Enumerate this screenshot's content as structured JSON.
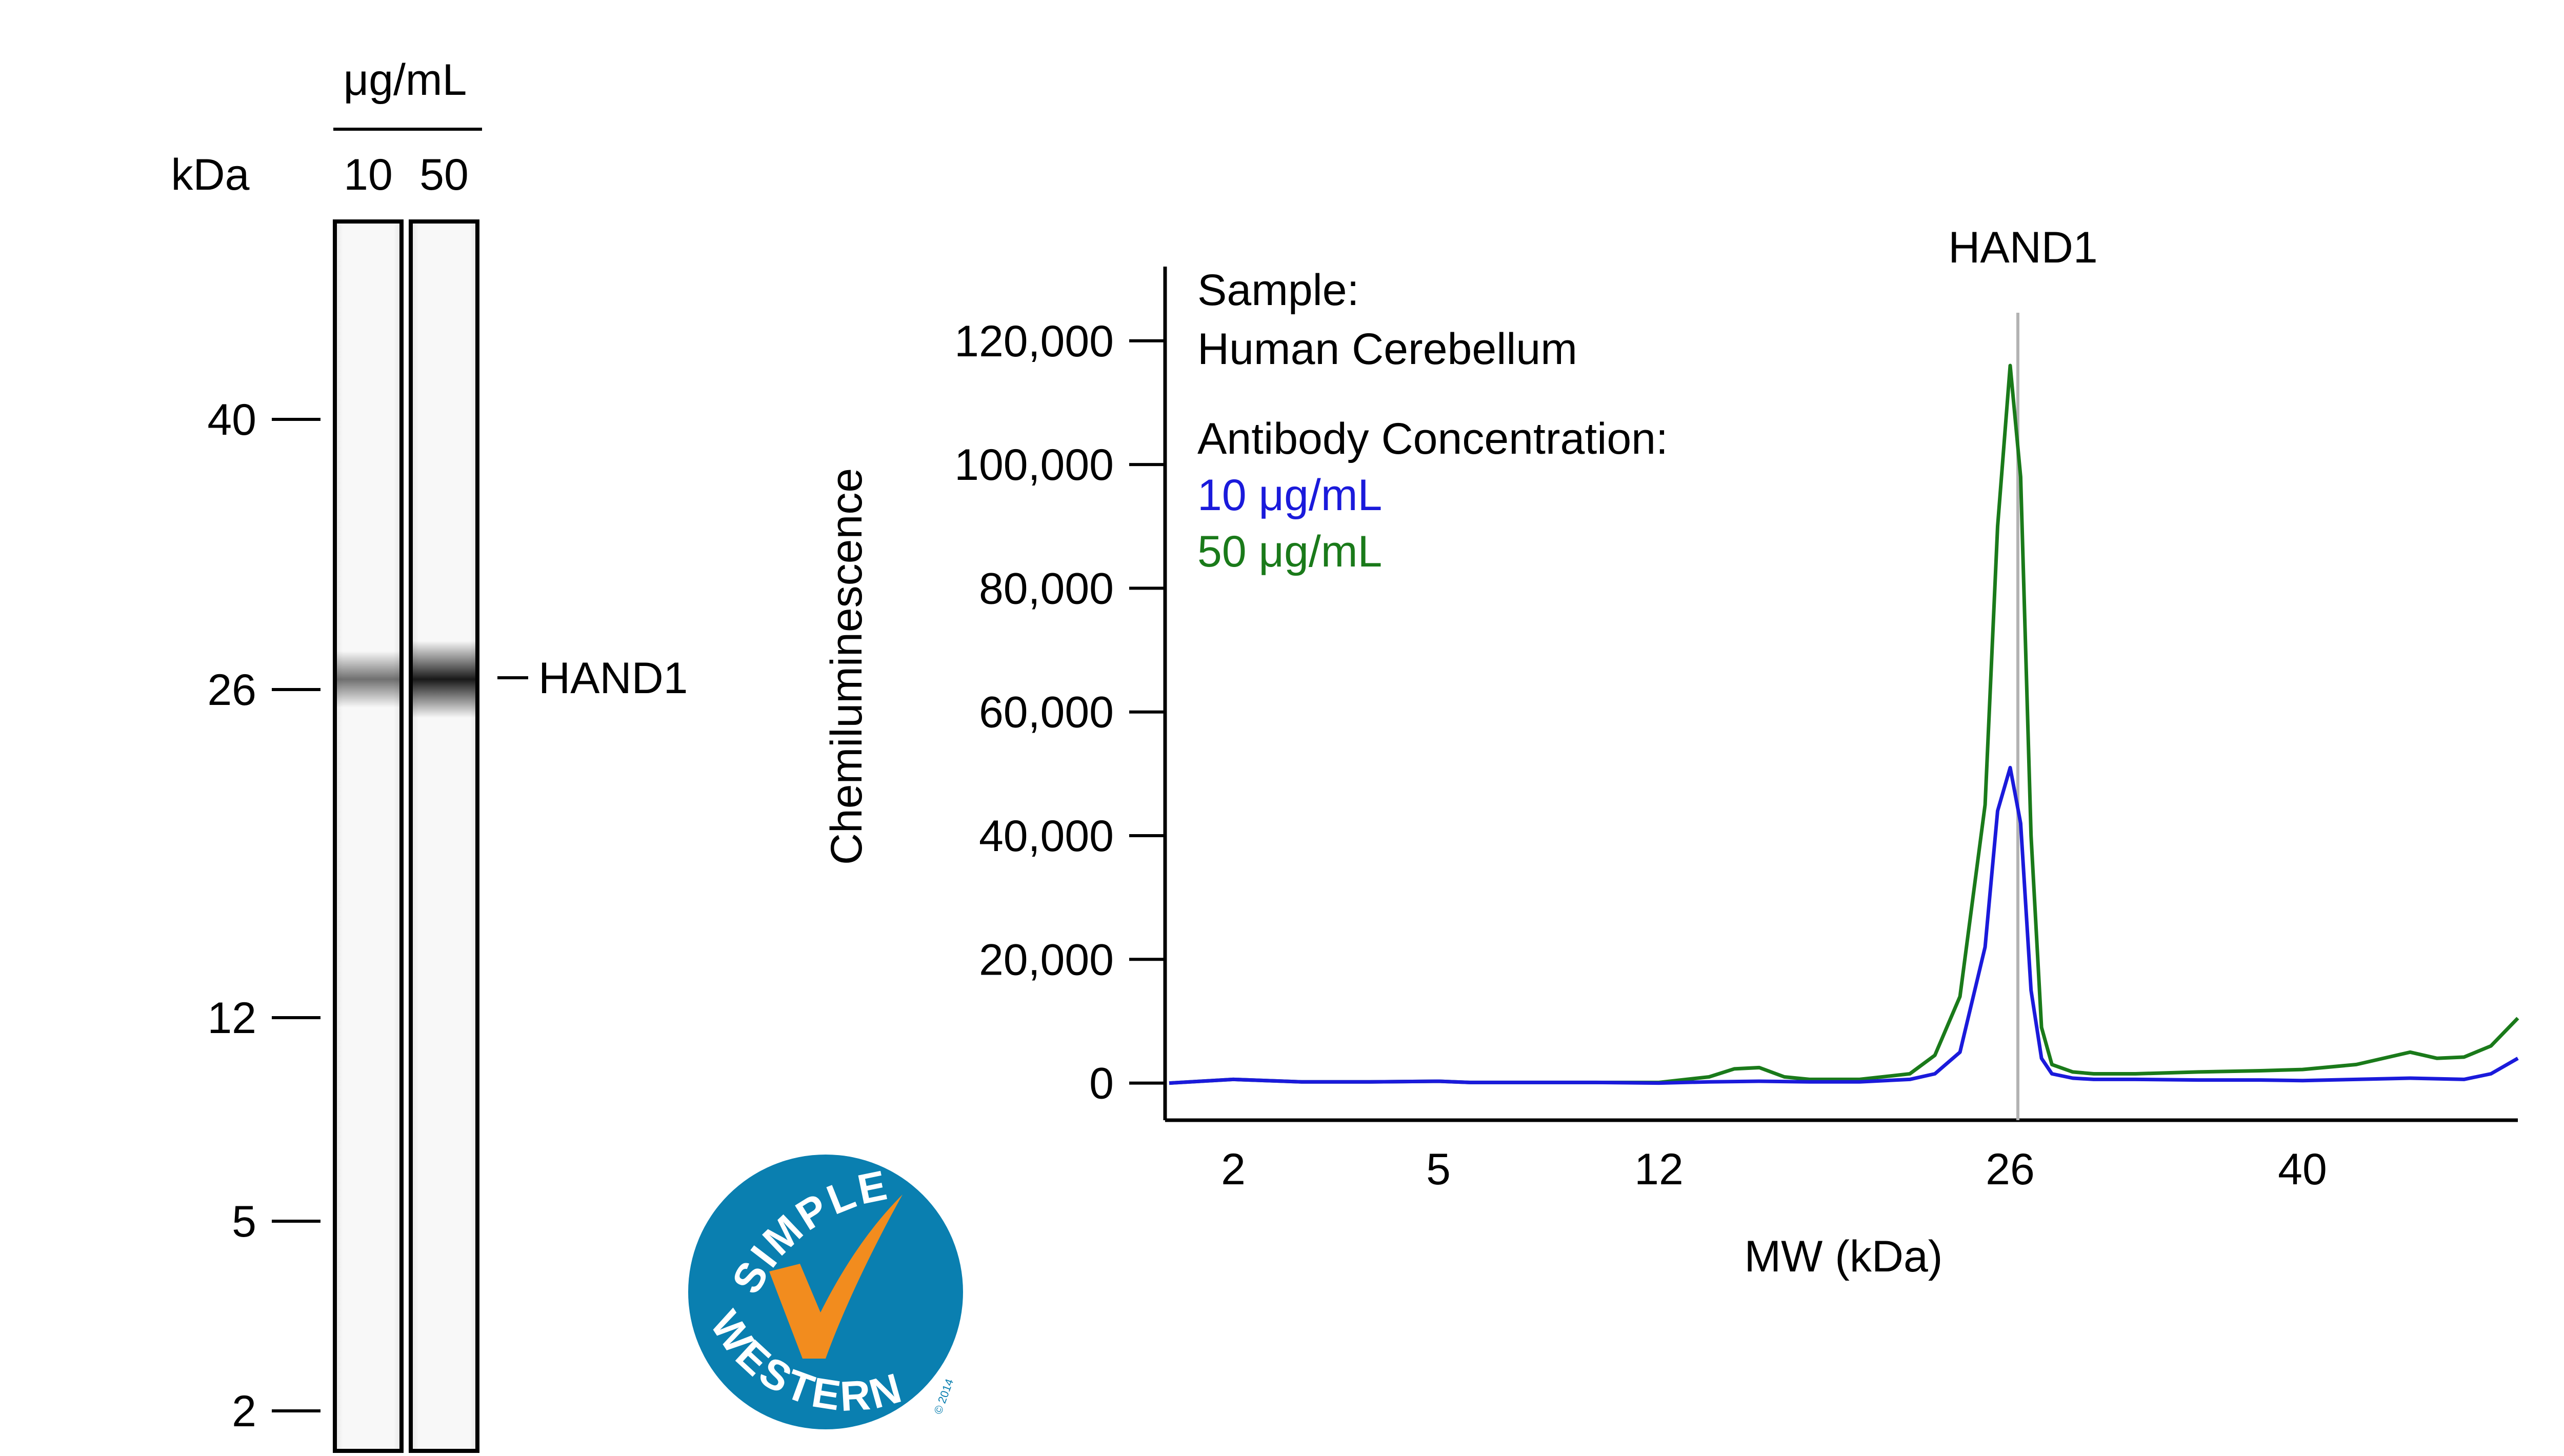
{
  "gel": {
    "unit_label": "μg/mL",
    "kda_label": "kDa",
    "lanes": [
      {
        "label": "10",
        "band_intensity": 0.55
      },
      {
        "label": "50",
        "band_intensity": 0.9
      }
    ],
    "markers": [
      {
        "label": "40",
        "kda": 40
      },
      {
        "label": "26",
        "kda": 26
      },
      {
        "label": "12",
        "kda": 12
      },
      {
        "label": "5",
        "kda": 5
      },
      {
        "label": "2",
        "kda": 2
      }
    ],
    "band_label": "HAND1",
    "band_kda": 26
  },
  "logo": {
    "top_text": "SIMPLE",
    "bottom_text": "WESTERN",
    "copyright": "© 2014",
    "colors": {
      "circle": "#0a7fb0",
      "check": "#f28c1e"
    }
  },
  "chart_data": {
    "type": "line",
    "title": "",
    "peak_label": "HAND1",
    "peak_x": 26,
    "xlabel": "MW (kDa)",
    "ylabel": "Chemiluminescence",
    "x_ticks": [
      2,
      5,
      12,
      26,
      40
    ],
    "y_ticks": [
      0,
      20000,
      40000,
      60000,
      80000,
      100000,
      120000
    ],
    "y_tick_labels": [
      "0",
      "20,000",
      "40,000",
      "60,000",
      "80,000",
      "100,000",
      "120,000"
    ],
    "ylim": [
      -6000,
      132000
    ],
    "xlim": [
      1,
      48
    ],
    "legend": {
      "sample_heading": "Sample:",
      "sample_name": "Human Cerebellum",
      "conc_heading": "Antibody Concentration:"
    },
    "series": [
      {
        "name": "10 μg/mL",
        "color": "#1a1adb",
        "x": [
          1,
          2,
          3,
          4,
          5,
          6,
          8,
          10,
          12,
          14,
          16,
          18,
          20,
          22,
          23,
          24,
          25,
          25.5,
          26,
          26.5,
          27,
          27.5,
          28,
          29,
          30,
          32,
          35,
          38,
          40,
          42,
          44,
          46,
          47,
          48
        ],
        "y": [
          0,
          600,
          200,
          200,
          300,
          100,
          100,
          100,
          0,
          200,
          300,
          200,
          200,
          600,
          1500,
          5000,
          22000,
          44000,
          51000,
          42000,
          15000,
          4000,
          1500,
          800,
          600,
          600,
          500,
          500,
          400,
          600,
          800,
          600,
          1500,
          4000
        ]
      },
      {
        "name": "50 μg/mL",
        "color": "#1a7a1a",
        "x": [
          1,
          2,
          3,
          4,
          5,
          6,
          8,
          10,
          12,
          14,
          15,
          16,
          17,
          18,
          20,
          22,
          23,
          24,
          25,
          25.5,
          26,
          26.5,
          27,
          27.5,
          28,
          29,
          30,
          32,
          35,
          38,
          40,
          42,
          44,
          45,
          46,
          47,
          48
        ],
        "y": [
          0,
          600,
          200,
          200,
          300,
          100,
          100,
          100,
          100,
          1000,
          2300,
          2500,
          1000,
          600,
          600,
          1500,
          4500,
          14000,
          45000,
          90000,
          116000,
          98000,
          40000,
          9000,
          3000,
          1800,
          1500,
          1500,
          1800,
          2000,
          2200,
          3000,
          5000,
          4000,
          4200,
          6000,
          10500
        ]
      }
    ]
  }
}
